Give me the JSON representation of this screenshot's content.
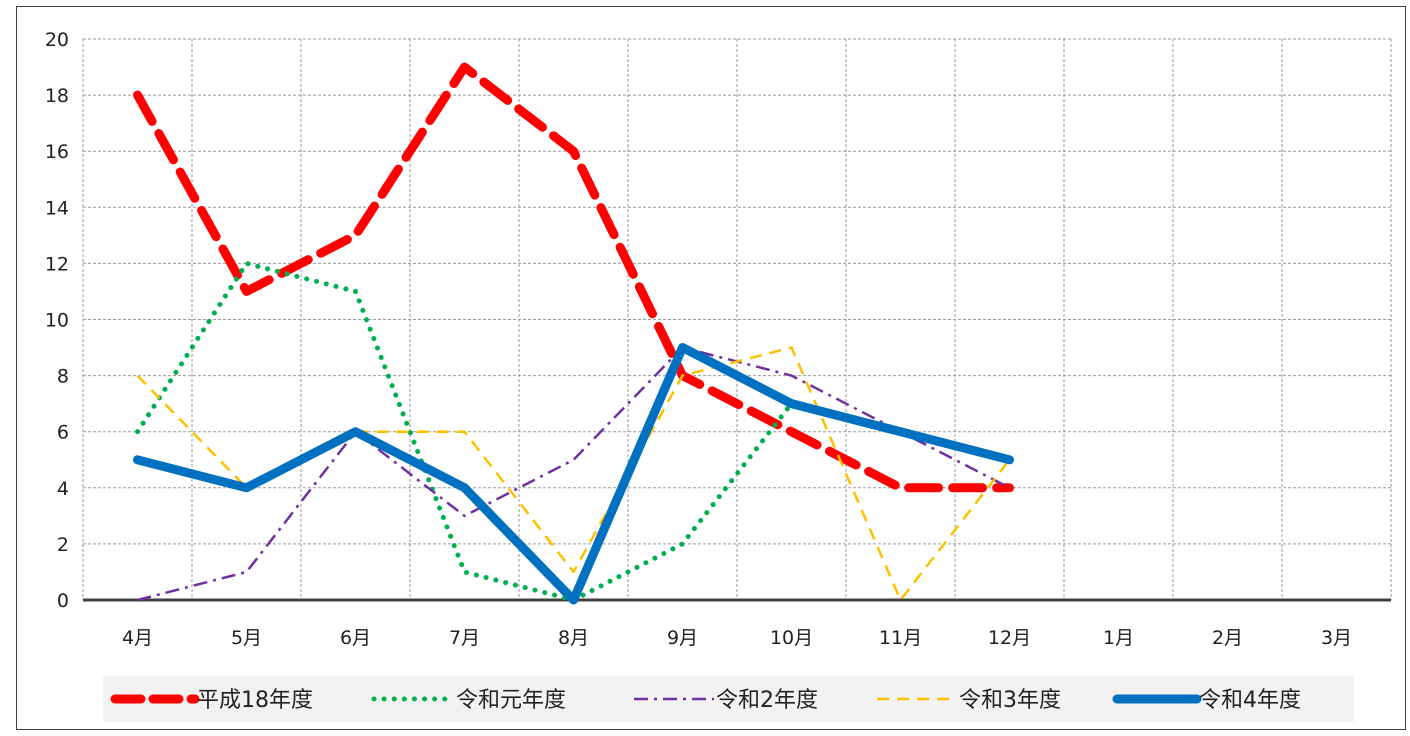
{
  "chart_data": {
    "type": "line",
    "title": "",
    "xlabel": "",
    "ylabel": "",
    "categories": [
      "4月",
      "5月",
      "6月",
      "7月",
      "8月",
      "9月",
      "10月",
      "11月",
      "12月",
      "1月",
      "2月",
      "3月"
    ],
    "ylim": [
      0,
      20
    ],
    "yticks": [
      0,
      2,
      4,
      6,
      8,
      10,
      12,
      14,
      16,
      18,
      20
    ],
    "grid": true,
    "legend_position": "bottom",
    "series": [
      {
        "name": "平成18年度",
        "values": [
          18,
          11,
          13,
          19,
          16,
          8,
          6,
          4,
          4,
          null,
          null,
          null
        ],
        "color": "#ff0000",
        "style": "long-dash"
      },
      {
        "name": "令和元年度",
        "values": [
          6,
          12,
          11,
          1,
          0,
          2,
          7,
          null,
          null,
          null,
          null,
          null
        ],
        "color": "#00b050",
        "style": "dotted"
      },
      {
        "name": "令和2年度",
        "values": [
          0,
          1,
          6,
          3,
          5,
          9,
          8,
          6,
          4,
          null,
          null,
          null
        ],
        "color": "#7030a0",
        "style": "dash-dot"
      },
      {
        "name": "令和3年度",
        "values": [
          8,
          4,
          6,
          6,
          1,
          8,
          9,
          0,
          5,
          null,
          null,
          null
        ],
        "color": "#ffc000",
        "style": "dashed"
      },
      {
        "name": "令和4年度",
        "values": [
          5,
          4,
          6,
          4,
          0,
          9,
          7,
          6,
          5,
          null,
          null,
          null
        ],
        "color": "#0070c0",
        "style": "solid-thick"
      }
    ]
  }
}
